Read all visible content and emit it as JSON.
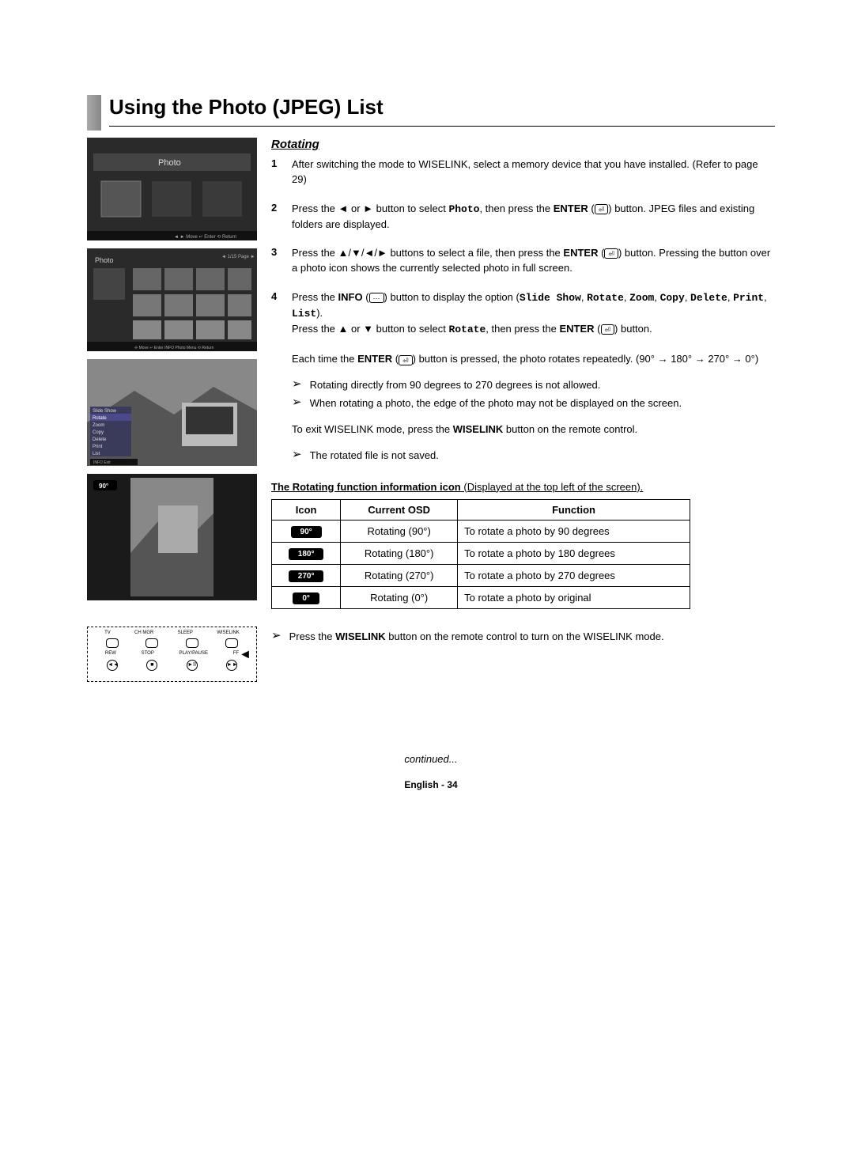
{
  "title": "Using the Photo (JPEG) List",
  "section_heading": "Rotating",
  "steps": [
    {
      "num": "1",
      "parts": [
        {
          "t": "text",
          "v": "After switching the mode to WISELINK, select a memory device that you have installed. (Refer to page 29)"
        }
      ]
    },
    {
      "num": "2",
      "parts": [
        {
          "t": "text",
          "v": "Press the ◄ or ► button to select "
        },
        {
          "t": "mono",
          "v": "Photo"
        },
        {
          "t": "text",
          "v": ", then press the "
        },
        {
          "t": "bold",
          "v": "ENTER"
        },
        {
          "t": "text",
          "v": " ("
        },
        {
          "t": "enter",
          "v": "↵"
        },
        {
          "t": "text",
          "v": ") button. JPEG files and existing folders are displayed."
        }
      ]
    },
    {
      "num": "3",
      "parts": [
        {
          "t": "text",
          "v": "Press the ▲/▼/◄/► buttons to select a file, then press the "
        },
        {
          "t": "bold",
          "v": "ENTER"
        },
        {
          "t": "text",
          "v": " ("
        },
        {
          "t": "enter",
          "v": "↵"
        },
        {
          "t": "text",
          "v": ") button. Pressing the button over a photo icon shows the currently selected photo in full screen."
        }
      ]
    },
    {
      "num": "4",
      "parts": [
        {
          "t": "text",
          "v": "Press the "
        },
        {
          "t": "bold",
          "v": "INFO"
        },
        {
          "t": "text",
          "v": " ("
        },
        {
          "t": "info",
          "v": "⋯"
        },
        {
          "t": "text",
          "v": ") button to display the option ("
        },
        {
          "t": "mono",
          "v": "Slide Show"
        },
        {
          "t": "text",
          "v": ", "
        },
        {
          "t": "mono",
          "v": "Rotate"
        },
        {
          "t": "text",
          "v": ", "
        },
        {
          "t": "mono",
          "v": "Zoom"
        },
        {
          "t": "text",
          "v": ", "
        },
        {
          "t": "mono",
          "v": "Copy"
        },
        {
          "t": "text",
          "v": ", "
        },
        {
          "t": "mono",
          "v": "Delete"
        },
        {
          "t": "text",
          "v": ", "
        },
        {
          "t": "mono",
          "v": "Print"
        },
        {
          "t": "text",
          "v": ", "
        },
        {
          "t": "mono",
          "v": "List"
        },
        {
          "t": "text",
          "v": ")."
        },
        {
          "t": "br"
        },
        {
          "t": "text",
          "v": "Press the ▲ or ▼ button to select "
        },
        {
          "t": "mono",
          "v": "Rotate"
        },
        {
          "t": "text",
          "v": ", then press the "
        },
        {
          "t": "bold",
          "v": "ENTER"
        },
        {
          "t": "text",
          "v": " ("
        },
        {
          "t": "enter",
          "v": "↵"
        },
        {
          "t": "text",
          "v": ") button."
        },
        {
          "t": "br"
        },
        {
          "t": "br"
        },
        {
          "t": "text",
          "v": "Each time the "
        },
        {
          "t": "bold",
          "v": "ENTER"
        },
        {
          "t": "text",
          "v": " ("
        },
        {
          "t": "enter",
          "v": "↵"
        },
        {
          "t": "text",
          "v": ") button is pressed, the photo rotates repeatedly. (90° → 180° → 270° → 0°)"
        }
      ],
      "notes": [
        "Rotating directly from 90 degrees to 270 degrees is not allowed.",
        "When rotating a photo, the edge of the photo may not be displayed on the screen."
      ],
      "after_notes": [
        {
          "t": "text",
          "v": "To exit WISELINK mode, press the "
        },
        {
          "t": "bold",
          "v": "WISELINK"
        },
        {
          "t": "text",
          "v": " button on the remote control."
        }
      ],
      "notes2": [
        "The rotated file is not saved."
      ]
    }
  ],
  "table_caption_bold": "The Rotating function information icon",
  "table_caption_rest": " (Displayed at the top left of the screen).",
  "table": {
    "headers": [
      "Icon",
      "Current OSD",
      "Function"
    ],
    "rows": [
      {
        "icon": "90°",
        "osd": "Rotating (90°)",
        "func": "To rotate a photo by 90 degrees"
      },
      {
        "icon": "180°",
        "osd": "Rotating (180°)",
        "func": "To rotate a photo by 180 degrees"
      },
      {
        "icon": "270°",
        "osd": "Rotating (270°)",
        "func": "To rotate a photo by 270 degrees"
      },
      {
        "icon": "0°",
        "osd": "Rotating (0°)",
        "func": "To rotate a photo by original"
      }
    ]
  },
  "bottom_note_parts": [
    {
      "t": "text",
      "v": "Press the "
    },
    {
      "t": "bold",
      "v": "WISELINK"
    },
    {
      "t": "text",
      "v": " button on the remote control to turn on the WISELINK mode."
    }
  ],
  "remote": {
    "labels1": [
      "TV",
      "CH MGR",
      "SLEEP",
      "WISELINK"
    ],
    "labels2": [
      "REW",
      "STOP",
      "PLAY/PAUSE",
      "FF"
    ],
    "circ": [
      "◄◄",
      "■",
      "►II",
      "►►"
    ]
  },
  "continued": "continued...",
  "footer": "English - 34",
  "thumbs": {
    "t1_label": "Photo",
    "t2_label": "Photo",
    "t4_badge": "90°",
    "menu_items": [
      "Slide Show",
      "Rotate",
      "Zoom",
      "Copy",
      "Delete",
      "Print",
      "List"
    ]
  }
}
